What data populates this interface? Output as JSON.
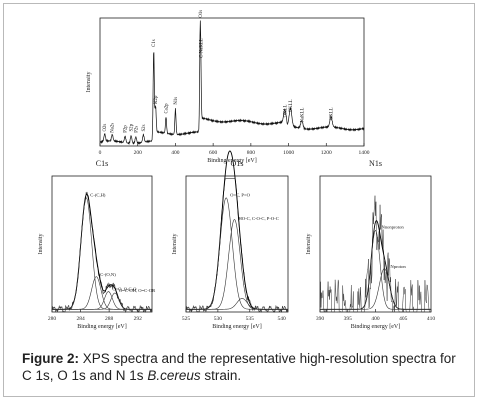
{
  "figure": {
    "caption_label": "Figure 2:",
    "caption_text_1": " XPS spectra and the representative high-resolution spectra for C 1s, O 1s and N 1s ",
    "caption_species": "B.cereus",
    "caption_text_2": " strain."
  },
  "chart_data": [
    {
      "type": "line",
      "panel": "survey",
      "title": "",
      "xlabel": "Binding energy [eV]",
      "ylabel": "Intensity",
      "xlim": [
        0,
        1400
      ],
      "xticks": [
        0,
        200,
        400,
        600,
        800,
        1000,
        1200,
        1400
      ],
      "peak_labels": [
        {
          "label": "O2s",
          "x": 25
        },
        {
          "label": "Na2s",
          "x": 65
        },
        {
          "label": "P2p",
          "x": 133
        },
        {
          "label": "S2p",
          "x": 165
        },
        {
          "label": "P2s",
          "x": 190
        },
        {
          "label": "S2s",
          "x": 230
        },
        {
          "label": "C1s",
          "x": 285
        },
        {
          "label": "K2p",
          "x": 295
        },
        {
          "label": "Ca2p",
          "x": 350
        },
        {
          "label": "N1s",
          "x": 400
        },
        {
          "label": "C-NaKLL",
          "x": 535
        },
        {
          "label": "O1s",
          "x": 532
        },
        {
          "label": "OKLL",
          "x": 980
        },
        {
          "label": "OKLL",
          "x": 1010
        },
        {
          "label": "NaKLL",
          "x": 1070
        },
        {
          "label": "CKLL",
          "x": 1225
        }
      ]
    },
    {
      "type": "line",
      "panel": "C1s",
      "title": "C1s",
      "xlabel": "Binding energy [eV]",
      "ylabel": "Intensity",
      "xlim": [
        280,
        294
      ],
      "xticks": [
        280,
        284,
        288,
        292
      ],
      "components": [
        {
          "label": "C-(C,H)",
          "center": 284.8
        },
        {
          "label": "C-(O,N)",
          "center": 286.2
        },
        {
          "label": "C=O, O-C-O",
          "center": 287.9
        },
        {
          "label": "O=C-OH, O=C-OR",
          "center": 288.8
        }
      ]
    },
    {
      "type": "line",
      "panel": "O1s",
      "title": "O1s",
      "xlabel": "Binding energy [eV]",
      "ylabel": "Intensity",
      "xlim": [
        525,
        541
      ],
      "xticks": [
        525,
        530,
        535,
        540
      ],
      "components": [
        {
          "label": "O=C, P=O",
          "center": 531.3
        },
        {
          "label": "HO-C, C-O-C, P-O-C",
          "center": 532.6
        },
        {
          "label": "",
          "center": 533.8
        }
      ]
    },
    {
      "type": "line",
      "panel": "N1s",
      "title": "N1s",
      "xlabel": "Binding energy [eV]",
      "ylabel": "Intensity",
      "xlim": [
        390,
        410
      ],
      "xticks": [
        390,
        395,
        400,
        405,
        410
      ],
      "components": [
        {
          "label": "Nnonproton",
          "center": 400.0
        },
        {
          "label": "Nproton",
          "center": 401.6
        }
      ]
    }
  ]
}
